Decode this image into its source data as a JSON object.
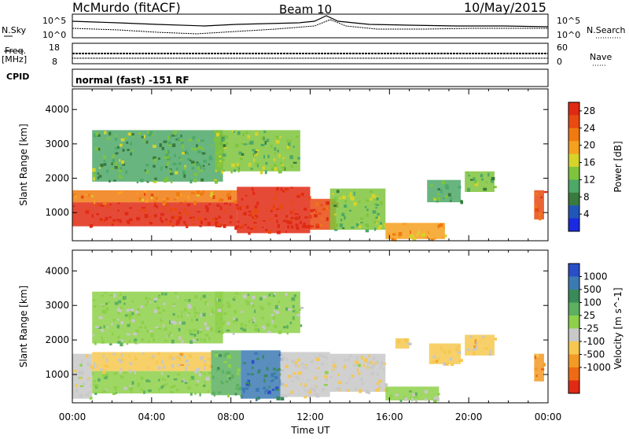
{
  "header": {
    "title": "McMurdo (fitACF)",
    "beam": "Beam 10",
    "date": "10/May/2015"
  },
  "strips": {
    "nsky_label": "N.Sky",
    "nsearch_label": "N.Search",
    "freq_label_top": "Freq.",
    "freq_label_unit": "[MHz]",
    "nave_label": "Nave",
    "cpid_label": "CPID",
    "cpid_text": "normal (fast) -151 RF",
    "left_tick_hi": "10^5",
    "left_tick_lo": "10^0",
    "right_tick_hi": "10^5",
    "right_tick_lo": "10^0",
    "freq_tick_hi": "18",
    "freq_tick_lo": "8",
    "nave_tick_hi": "60",
    "nave_tick_lo": "0"
  },
  "xaxis": {
    "label": "Time UT",
    "ticks": [
      "00:00",
      "04:00",
      "08:00",
      "12:00",
      "16:00",
      "20:00",
      "00:00"
    ]
  },
  "chart_data": [
    {
      "type": "heatmap",
      "title": "",
      "xlabel": "Time UT",
      "ylabel": "Slant Range [km]",
      "xlim": [
        0,
        24
      ],
      "ylim": [
        180,
        4600
      ],
      "yticks": [
        "1000",
        "2000",
        "3000",
        "4000"
      ],
      "colorbar": {
        "label": "Power [dB]",
        "ticks": [
          "4",
          "8",
          "12",
          "16",
          "20",
          "24",
          "28"
        ],
        "range": [
          0,
          30
        ],
        "colors": [
          "#1a2ae0",
          "#2255b8",
          "#3a7a3e",
          "#4ea868",
          "#7fc43c",
          "#d6d42a",
          "#f6a020",
          "#f07a10",
          "#e84a12",
          "#e02a14"
        ]
      },
      "regions": [
        {
          "t0": 0.0,
          "t1": 8.3,
          "r0": 600,
          "r1": 1300,
          "value": 29
        },
        {
          "t0": 0.0,
          "t1": 8.3,
          "r0": 1300,
          "r1": 1650,
          "value": 21
        },
        {
          "t0": 8.3,
          "t1": 12.0,
          "r0": 400,
          "r1": 1750,
          "value": 29
        },
        {
          "t0": 12.0,
          "t1": 13.3,
          "r0": 500,
          "r1": 1400,
          "value": 26
        },
        {
          "t0": 13.0,
          "t1": 15.8,
          "r0": 500,
          "r1": 1700,
          "value": 13
        },
        {
          "t0": 15.8,
          "t1": 18.8,
          "r0": 230,
          "r1": 700,
          "value": 20
        },
        {
          "t0": 17.9,
          "t1": 19.6,
          "r0": 1300,
          "r1": 1950,
          "value": 11
        },
        {
          "t0": 19.8,
          "t1": 21.3,
          "r0": 1600,
          "r1": 2200,
          "value": 12
        },
        {
          "t0": 23.3,
          "t1": 23.8,
          "r0": 800,
          "r1": 1650,
          "value": 25
        },
        {
          "t0": 1.0,
          "t1": 7.6,
          "r0": 1900,
          "r1": 3400,
          "value": 11
        },
        {
          "t0": 7.2,
          "t1": 11.5,
          "r0": 2200,
          "r1": 3400,
          "value": 13
        }
      ]
    },
    {
      "type": "heatmap",
      "title": "",
      "xlabel": "Time UT",
      "ylabel": "Slant Range [km]",
      "xlim": [
        0,
        24
      ],
      "ylim": [
        180,
        4600
      ],
      "yticks": [
        "1000",
        "2000",
        "3000",
        "4000"
      ],
      "colorbar": {
        "label": "Velocity [m s^-1]",
        "ticks": [
          "1000",
          "500",
          "100",
          "25",
          "-25",
          "-100",
          "-500",
          "-1000"
        ],
        "range": [
          -1200,
          1200
        ],
        "colors": [
          "#2a4ec8",
          "#3c7ab4",
          "#3a8a5a",
          "#5cb060",
          "#8ed04a",
          "#c8c8c8",
          "#f6c850",
          "#f39a24",
          "#ee6a14",
          "#e02a14"
        ]
      },
      "regions": [
        {
          "t0": 0.0,
          "t1": 1.0,
          "r0": 300,
          "r1": 1600,
          "value": -150
        },
        {
          "t0": 1.0,
          "t1": 7.0,
          "r0": 450,
          "r1": 1100,
          "value": 150
        },
        {
          "t0": 1.0,
          "t1": 7.0,
          "r0": 1100,
          "r1": 1650,
          "value": -250
        },
        {
          "t0": 7.0,
          "t1": 8.5,
          "r0": 400,
          "r1": 1700,
          "value": 300
        },
        {
          "t0": 8.5,
          "t1": 10.5,
          "r0": 300,
          "r1": 1700,
          "value": 800
        },
        {
          "t0": 10.5,
          "t1": 13.0,
          "r0": 350,
          "r1": 1650,
          "value": -200
        },
        {
          "t0": 13.0,
          "t1": 15.8,
          "r0": 500,
          "r1": 1600,
          "value": -220
        },
        {
          "t0": 15.8,
          "t1": 18.5,
          "r0": 250,
          "r1": 650,
          "value": 120
        },
        {
          "t0": 16.3,
          "t1": 17.0,
          "r0": 1750,
          "r1": 2050,
          "value": -400
        },
        {
          "t0": 18.0,
          "t1": 19.6,
          "r0": 1300,
          "r1": 1900,
          "value": -300
        },
        {
          "t0": 19.8,
          "t1": 21.3,
          "r0": 1550,
          "r1": 2150,
          "value": -300
        },
        {
          "t0": 23.3,
          "t1": 23.8,
          "r0": 800,
          "r1": 1600,
          "value": -600
        },
        {
          "t0": 1.0,
          "t1": 7.6,
          "r0": 1900,
          "r1": 3400,
          "value": 90
        },
        {
          "t0": 7.2,
          "t1": 11.5,
          "r0": 2200,
          "r1": 3400,
          "value": 120
        }
      ]
    }
  ]
}
